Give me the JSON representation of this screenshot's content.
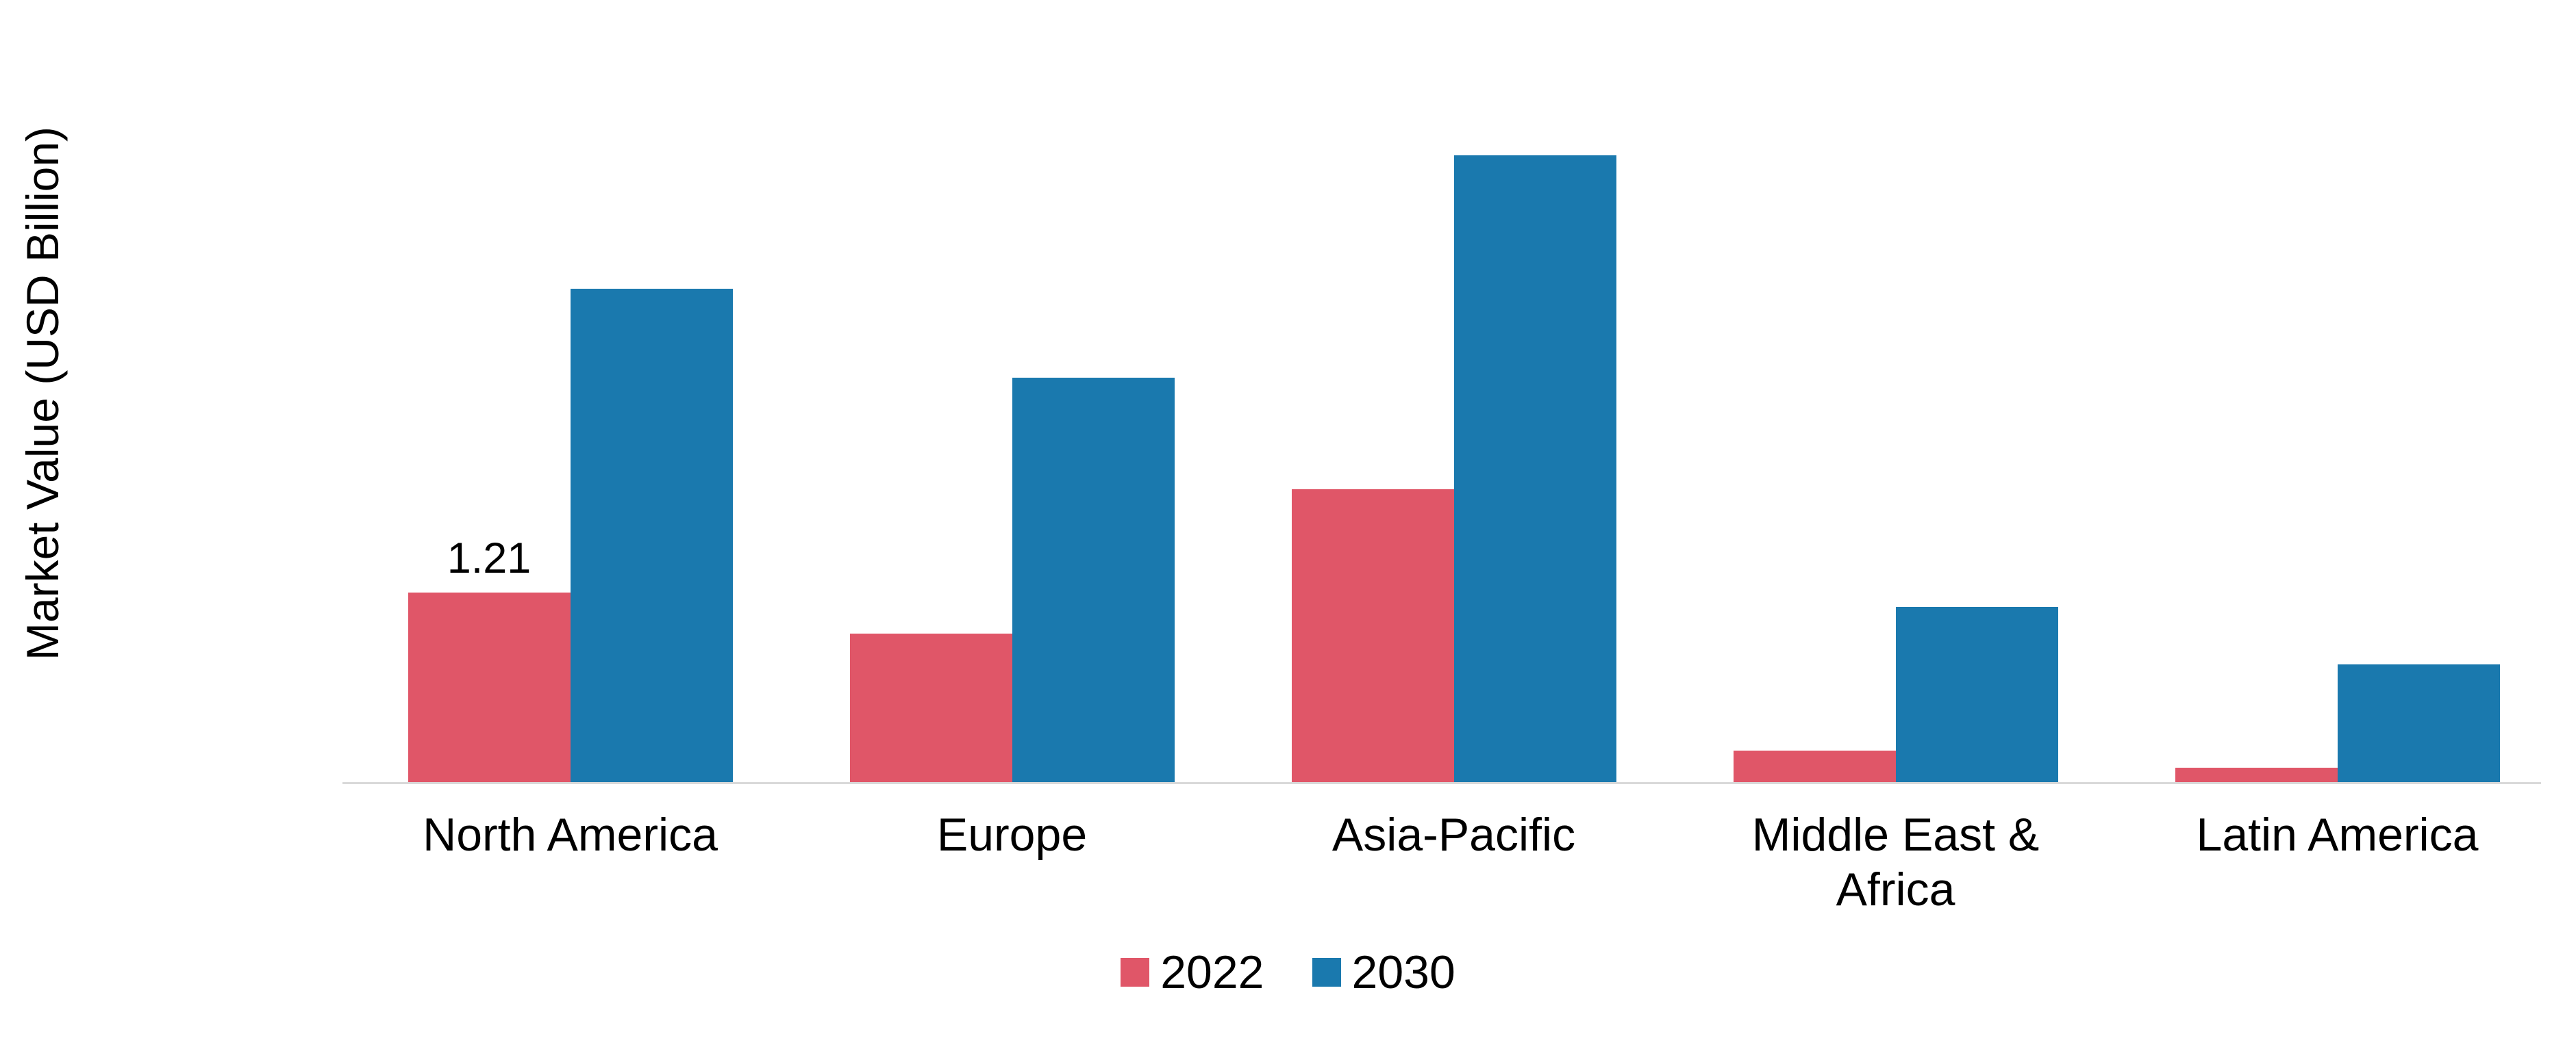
{
  "chart_data": {
    "type": "bar",
    "title": "",
    "xlabel": "",
    "ylabel": "Market Value (USD Billion)",
    "ylim": [
      0,
      4.25
    ],
    "grid": false,
    "legend_position": "bottom",
    "categories": [
      "North America",
      "Europe",
      "Asia-Pacific",
      "Middle East & Africa",
      "Latin America"
    ],
    "series": [
      {
        "name": "2022",
        "color": "#e05668",
        "values": [
          1.21,
          0.95,
          1.87,
          0.2,
          0.09
        ]
      },
      {
        "name": "2030",
        "color": "#1a79ae",
        "values": [
          3.15,
          2.58,
          4.0,
          1.12,
          0.75
        ]
      }
    ],
    "data_labels": [
      {
        "series": "2022",
        "category": "North America",
        "text": "1.21"
      }
    ],
    "axis_line_color": "#d9d9d9",
    "background_color": "#ffffff"
  }
}
